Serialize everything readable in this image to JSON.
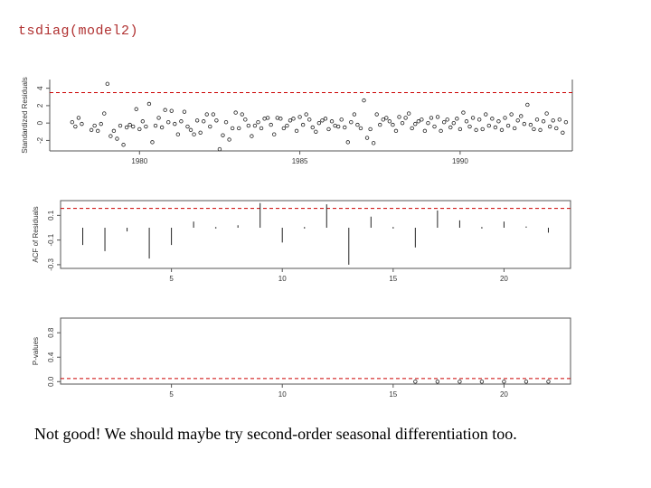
{
  "code_line": "tsdiag(model2)",
  "caption": "Not good! We should maybe try second-order seasonal differentiation too.",
  "colors": {
    "reference_line": "#cc0000",
    "marks": "#222222"
  },
  "chart_data": [
    {
      "type": "scatter",
      "title": "",
      "xlabel": "",
      "ylabel": "Standardized Residuals",
      "x_ticks": [
        "1980",
        "1985",
        "1990"
      ],
      "y_ticks": [
        "-2",
        "0",
        "2",
        "4"
      ],
      "ylim": [
        -3.2,
        5
      ],
      "xlim": [
        1977.2,
        1993.5
      ],
      "hlines": [
        3.5
      ],
      "points": [
        [
          1977.9,
          0.1
        ],
        [
          1978.0,
          -0.4
        ],
        [
          1978.1,
          0.6
        ],
        [
          1978.2,
          -0.1
        ],
        [
          1978.5,
          -0.8
        ],
        [
          1978.6,
          -0.3
        ],
        [
          1978.7,
          -0.9
        ],
        [
          1978.8,
          -0.1
        ],
        [
          1978.9,
          1.1
        ],
        [
          1979.0,
          4.5
        ],
        [
          1979.1,
          -1.5
        ],
        [
          1979.2,
          -0.9
        ],
        [
          1979.3,
          -1.8
        ],
        [
          1979.4,
          -0.3
        ],
        [
          1979.5,
          -2.5
        ],
        [
          1979.6,
          -0.5
        ],
        [
          1979.7,
          -0.2
        ],
        [
          1979.8,
          -0.4
        ],
        [
          1979.9,
          1.6
        ],
        [
          1980.0,
          -0.7
        ],
        [
          1980.1,
          0.2
        ],
        [
          1980.2,
          -0.4
        ],
        [
          1980.3,
          2.2
        ],
        [
          1980.4,
          -2.2
        ],
        [
          1980.5,
          -0.3
        ],
        [
          1980.6,
          0.6
        ],
        [
          1980.7,
          -0.5
        ],
        [
          1980.8,
          1.5
        ],
        [
          1980.9,
          0.1
        ],
        [
          1981.0,
          1.4
        ],
        [
          1981.1,
          -0.1
        ],
        [
          1981.2,
          -1.3
        ],
        [
          1981.3,
          0.2
        ],
        [
          1981.4,
          1.3
        ],
        [
          1981.5,
          -0.4
        ],
        [
          1981.6,
          -0.8
        ],
        [
          1981.7,
          -1.3
        ],
        [
          1981.8,
          0.3
        ],
        [
          1981.9,
          -1.1
        ],
        [
          1982.0,
          0.2
        ],
        [
          1982.1,
          1.0
        ],
        [
          1982.2,
          -0.4
        ],
        [
          1982.3,
          1.0
        ],
        [
          1982.4,
          0.3
        ],
        [
          1982.5,
          -3.0
        ],
        [
          1982.6,
          -1.4
        ],
        [
          1982.7,
          0.1
        ],
        [
          1982.8,
          -1.9
        ],
        [
          1982.9,
          -0.6
        ],
        [
          1983.0,
          1.2
        ],
        [
          1983.1,
          -0.6
        ],
        [
          1983.2,
          1.0
        ],
        [
          1983.3,
          0.4
        ],
        [
          1983.4,
          -0.3
        ],
        [
          1983.5,
          -1.5
        ],
        [
          1983.6,
          -0.3
        ],
        [
          1983.7,
          0.1
        ],
        [
          1983.8,
          -0.6
        ],
        [
          1983.9,
          0.5
        ],
        [
          1984.0,
          0.6
        ],
        [
          1984.1,
          -0.2
        ],
        [
          1984.2,
          -1.3
        ],
        [
          1984.3,
          0.6
        ],
        [
          1984.4,
          0.5
        ],
        [
          1984.5,
          -0.6
        ],
        [
          1984.6,
          -0.3
        ],
        [
          1984.7,
          0.3
        ],
        [
          1984.8,
          0.5
        ],
        [
          1984.9,
          -0.9
        ],
        [
          1985.0,
          0.7
        ],
        [
          1985.1,
          -0.2
        ],
        [
          1985.2,
          1.0
        ],
        [
          1985.3,
          0.4
        ],
        [
          1985.4,
          -0.5
        ],
        [
          1985.5,
          -1.0
        ],
        [
          1985.6,
          0.0
        ],
        [
          1985.7,
          0.3
        ],
        [
          1985.8,
          0.5
        ],
        [
          1985.9,
          -0.7
        ],
        [
          1986.0,
          0.2
        ],
        [
          1986.1,
          -0.3
        ],
        [
          1986.2,
          -0.4
        ],
        [
          1986.3,
          0.4
        ],
        [
          1986.4,
          -0.5
        ],
        [
          1986.5,
          -2.2
        ],
        [
          1986.6,
          0.1
        ],
        [
          1986.7,
          1.0
        ],
        [
          1986.8,
          -0.2
        ],
        [
          1986.9,
          -0.6
        ],
        [
          1987.0,
          2.6
        ],
        [
          1987.1,
          -1.7
        ],
        [
          1987.2,
          -0.7
        ],
        [
          1987.3,
          -2.3
        ],
        [
          1987.4,
          1.0
        ],
        [
          1987.5,
          -0.2
        ],
        [
          1987.6,
          0.4
        ],
        [
          1987.7,
          0.6
        ],
        [
          1987.8,
          0.2
        ],
        [
          1987.9,
          -0.2
        ],
        [
          1988.0,
          -0.9
        ],
        [
          1988.1,
          0.7
        ],
        [
          1988.2,
          0.0
        ],
        [
          1988.3,
          0.6
        ],
        [
          1988.4,
          1.1
        ],
        [
          1988.5,
          -0.6
        ],
        [
          1988.6,
          -0.1
        ],
        [
          1988.7,
          0.2
        ],
        [
          1988.8,
          0.4
        ],
        [
          1988.9,
          -0.9
        ],
        [
          1989.0,
          0.0
        ],
        [
          1989.1,
          0.6
        ],
        [
          1989.2,
          -0.4
        ],
        [
          1989.3,
          0.7
        ],
        [
          1989.4,
          -0.9
        ],
        [
          1989.5,
          0.1
        ],
        [
          1989.6,
          0.4
        ],
        [
          1989.7,
          -0.5
        ],
        [
          1989.8,
          0.0
        ],
        [
          1989.9,
          0.5
        ],
        [
          1990.0,
          -0.7
        ],
        [
          1990.1,
          1.2
        ],
        [
          1990.2,
          0.2
        ],
        [
          1990.3,
          -0.4
        ],
        [
          1990.4,
          0.6
        ],
        [
          1990.5,
          -0.8
        ],
        [
          1990.6,
          0.4
        ],
        [
          1990.7,
          -0.7
        ],
        [
          1990.8,
          1.0
        ],
        [
          1990.9,
          -0.3
        ],
        [
          1991.0,
          0.5
        ],
        [
          1991.1,
          -0.5
        ],
        [
          1991.2,
          0.2
        ],
        [
          1991.3,
          -0.8
        ],
        [
          1991.4,
          0.6
        ],
        [
          1991.5,
          -0.3
        ],
        [
          1991.6,
          1.0
        ],
        [
          1991.7,
          -0.6
        ],
        [
          1991.8,
          0.3
        ],
        [
          1991.9,
          0.8
        ],
        [
          1992.0,
          -0.1
        ],
        [
          1992.1,
          2.1
        ],
        [
          1992.2,
          -0.2
        ],
        [
          1992.3,
          -0.7
        ],
        [
          1992.4,
          0.4
        ],
        [
          1992.5,
          -0.8
        ],
        [
          1992.6,
          0.2
        ],
        [
          1992.7,
          1.1
        ],
        [
          1992.8,
          -0.4
        ],
        [
          1992.9,
          0.3
        ],
        [
          1993.0,
          -0.6
        ],
        [
          1993.1,
          0.4
        ],
        [
          1993.2,
          -1.1
        ],
        [
          1993.3,
          0.1
        ]
      ]
    },
    {
      "type": "bar",
      "title": "",
      "xlabel": "",
      "ylabel": "ACF of Residuals",
      "x_ticks": [
        "5",
        "10",
        "15",
        "20"
      ],
      "y_ticks": [
        "-0.3",
        "-0.1",
        "0.1"
      ],
      "xlim": [
        0,
        23
      ],
      "ylim": [
        -0.33,
        0.22
      ],
      "hlines": [
        0.157
      ],
      "lags": [
        1,
        2,
        3,
        4,
        5,
        6,
        7,
        8,
        9,
        10,
        11,
        12,
        13,
        14,
        15,
        16,
        17,
        18,
        19,
        20,
        21,
        22
      ],
      "values": [
        -0.14,
        -0.19,
        -0.03,
        -0.25,
        -0.14,
        0.05,
        0.0,
        0.02,
        0.2,
        -0.12,
        0.0,
        0.19,
        -0.3,
        0.09,
        0.0,
        -0.16,
        0.14,
        0.06,
        0.0,
        0.05,
        0.01,
        -0.04
      ]
    },
    {
      "type": "scatter",
      "title": "",
      "xlabel": "",
      "ylabel": "P-values",
      "x_ticks": [
        "5",
        "10",
        "15",
        "20"
      ],
      "y_ticks": [
        "0.0",
        "0.4",
        "0.8"
      ],
      "xlim": [
        0,
        23
      ],
      "ylim": [
        -0.04,
        1.04
      ],
      "hlines": [
        0.05
      ],
      "lags": [
        16,
        17,
        18,
        19,
        20,
        21,
        22
      ],
      "values": [
        0.0,
        0.0,
        0.0,
        0.0,
        0.0,
        0.0,
        0.0
      ]
    }
  ]
}
